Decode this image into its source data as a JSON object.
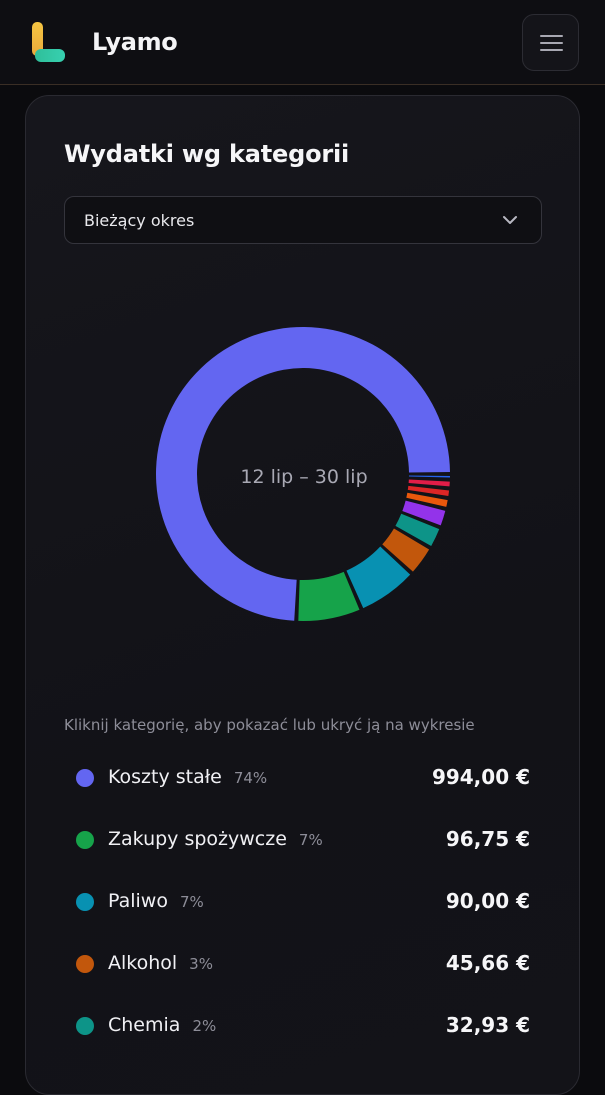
{
  "header": {
    "brand": "Lyamo",
    "logo_icon": "lyamo-logo-icon",
    "menu_icon": "hamburger-menu-icon"
  },
  "card": {
    "title": "Wydatki wg kategorii",
    "period_select": {
      "value": "Bieżący okres",
      "icon": "chevron-down-icon"
    },
    "center_label": "12 lip – 30 lip",
    "hint": "Kliknij kategorię, aby pokazać lub ukryć ją na wykresie"
  },
  "categories": [
    {
      "name": "Koszty stałe",
      "pct": "74%",
      "amount": "994,00 €",
      "color": "#6366f1"
    },
    {
      "name": "Zakupy spożywcze",
      "pct": "7%",
      "amount": "96,75 €",
      "color": "#16a34a"
    },
    {
      "name": "Paliwo",
      "pct": "7%",
      "amount": "90,00 €",
      "color": "#0891b2"
    },
    {
      "name": "Alkohol",
      "pct": "3%",
      "amount": "45,66 €",
      "color": "#c2570c"
    },
    {
      "name": "Chemia",
      "pct": "2%",
      "amount": "32,93 €",
      "color": "#0d9488"
    }
  ],
  "chart_data": {
    "type": "pie",
    "donut": true,
    "slices": [
      {
        "label": "Koszty stałe",
        "value": 994.0,
        "color": "#6366f1"
      },
      {
        "label": "Zakupy spożywcze",
        "value": 96.75,
        "color": "#16a34a"
      },
      {
        "label": "Paliwo",
        "value": 90.0,
        "color": "#0891b2"
      },
      {
        "label": "Alkohol",
        "value": 45.66,
        "color": "#c2570c"
      },
      {
        "label": "Chemia",
        "value": 32.93,
        "color": "#0d9488"
      },
      {
        "value": 28,
        "color": "#9333ea"
      },
      {
        "value": 16,
        "color": "#ea580c"
      },
      {
        "value": 14,
        "color": "#dc2626"
      },
      {
        "value": 13,
        "color": "#e11d48"
      },
      {
        "value": 8,
        "color": "#2563eb"
      }
    ]
  }
}
